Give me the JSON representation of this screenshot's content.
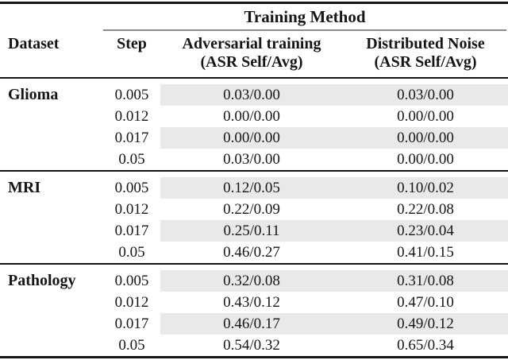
{
  "header": {
    "training_method": "Training Method",
    "dataset": "Dataset",
    "step": "Step",
    "col3_line1": "Adversarial training",
    "col3_line2": "(ASR Self/Avg)",
    "col4_line1": "Distributed Noise",
    "col4_line2": "(ASR Self/Avg)"
  },
  "sections": [
    {
      "dataset": "Glioma",
      "rows": [
        {
          "step": "0.005",
          "adversarial": "0.03/0.00",
          "distributed": "0.03/0.00"
        },
        {
          "step": "0.012",
          "adversarial": "0.00/0.00",
          "distributed": "0.00/0.00"
        },
        {
          "step": "0.017",
          "adversarial": "0.00/0.00",
          "distributed": "0.00/0.00"
        },
        {
          "step": "0.05",
          "adversarial": "0.03/0.00",
          "distributed": "0.00/0.00"
        }
      ]
    },
    {
      "dataset": "MRI",
      "rows": [
        {
          "step": "0.005",
          "adversarial": "0.12/0.05",
          "distributed": "0.10/0.02"
        },
        {
          "step": "0.012",
          "adversarial": "0.22/0.09",
          "distributed": "0.22/0.08"
        },
        {
          "step": "0.017",
          "adversarial": "0.25/0.11",
          "distributed": "0.23/0.04"
        },
        {
          "step": "0.05",
          "adversarial": "0.46/0.27",
          "distributed": "0.41/0.15"
        }
      ]
    },
    {
      "dataset": "Pathology",
      "rows": [
        {
          "step": "0.005",
          "adversarial": "0.32/0.08",
          "distributed": "0.31/0.08"
        },
        {
          "step": "0.012",
          "adversarial": "0.43/0.12",
          "distributed": "0.47/0.10"
        },
        {
          "step": "0.017",
          "adversarial": "0.46/0.17",
          "distributed": "0.49/0.12"
        },
        {
          "step": "0.05",
          "adversarial": "0.54/0.32",
          "distributed": "0.65/0.34"
        }
      ]
    }
  ],
  "colors": {
    "row_shade": "#e9e9e9",
    "rule": "#161616",
    "cmidrule": "#8a8a8a",
    "background": "#ffffff"
  }
}
